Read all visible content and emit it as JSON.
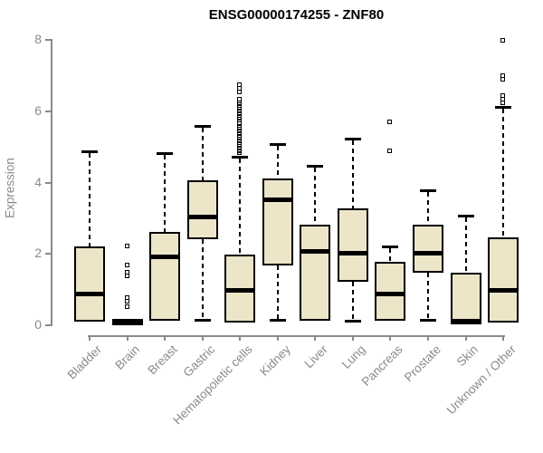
{
  "chart_data": {
    "type": "boxplot",
    "title": "ENSG00000174255 - ZNF80",
    "xlabel": "",
    "ylabel": "Expression",
    "ylim": [
      0,
      8
    ],
    "yticks": [
      0,
      2,
      4,
      6,
      8
    ],
    "grid": false,
    "legend": false,
    "categories": [
      "Bladder",
      "Brain",
      "Breast",
      "Gastric",
      "Hematopoietic cells",
      "Kidney",
      "Liver",
      "Lung",
      "Pancreas",
      "Prostate",
      "Skin",
      "Unknown / Other"
    ],
    "series": [
      {
        "name": "Bladder",
        "low": 0.08,
        "q1": 0.08,
        "median": 0.85,
        "q3": 2.2,
        "high": 4.85,
        "outliers": []
      },
      {
        "name": "Brain",
        "low": 0,
        "q1": 0,
        "median": 0.05,
        "q3": 0.15,
        "high": 0.15,
        "outliers": [
          2.2,
          1.65,
          1.45,
          1.35,
          0.75,
          0.65,
          0.5
        ]
      },
      {
        "name": "Breast",
        "low": 0.1,
        "q1": 0.1,
        "median": 1.9,
        "q3": 2.6,
        "high": 4.8,
        "outliers": []
      },
      {
        "name": "Gastric",
        "low": 0.1,
        "q1": 2.4,
        "median": 3.0,
        "q3": 4.05,
        "high": 5.55,
        "outliers": []
      },
      {
        "name": "Hematopoietic cells",
        "low": 0,
        "q1": 0.05,
        "median": 0.95,
        "q3": 1.95,
        "high": 4.7,
        "outliers": [
          4.8,
          4.84,
          4.88,
          4.92,
          4.96,
          5.0,
          5.04,
          5.08,
          5.12,
          5.16,
          5.2,
          5.24,
          5.28,
          5.32,
          5.36,
          5.4,
          5.44,
          5.48,
          5.52,
          5.56,
          5.6,
          5.64,
          5.72,
          5.76,
          5.8,
          5.84,
          5.88,
          5.92,
          5.96,
          6.0,
          6.04,
          6.08,
          6.12,
          6.16,
          6.2,
          6.25,
          6.3,
          6.5,
          6.6,
          6.7
        ]
      },
      {
        "name": "Kidney",
        "low": 0.1,
        "q1": 1.65,
        "median": 3.5,
        "q3": 4.1,
        "high": 5.05,
        "outliers": []
      },
      {
        "name": "Liver",
        "low": 0.1,
        "q1": 0.1,
        "median": 2.05,
        "q3": 2.8,
        "high": 4.45,
        "outliers": []
      },
      {
        "name": "Lung",
        "low": 0.08,
        "q1": 1.2,
        "median": 2.0,
        "q3": 3.25,
        "high": 5.2,
        "outliers": []
      },
      {
        "name": "Pancreas",
        "low": 0.1,
        "q1": 0.1,
        "median": 0.85,
        "q3": 1.75,
        "high": 2.2,
        "outliers": [
          4.85,
          5.65
        ]
      },
      {
        "name": "Prostate",
        "low": 0.1,
        "q1": 1.45,
        "median": 2.0,
        "q3": 2.8,
        "high": 3.75,
        "outliers": []
      },
      {
        "name": "Skin",
        "low": 0,
        "q1": 0,
        "median": 0.1,
        "q3": 1.45,
        "high": 3.05,
        "outliers": []
      },
      {
        "name": "Unknown / Other",
        "low": 0,
        "q1": 0.05,
        "median": 0.95,
        "q3": 2.45,
        "high": 6.1,
        "outliers": [
          6.2,
          6.3,
          6.4,
          6.85,
          6.95,
          7.95
        ]
      }
    ]
  },
  "colors": {
    "box_fill": "#ece5c8",
    "box_border": "#000000",
    "median": "#000000",
    "whisker": "#000000",
    "axis": "#8a8a8a",
    "tick_text": "#8a8a8a",
    "title_text": "#000000",
    "background": "#ffffff"
  }
}
